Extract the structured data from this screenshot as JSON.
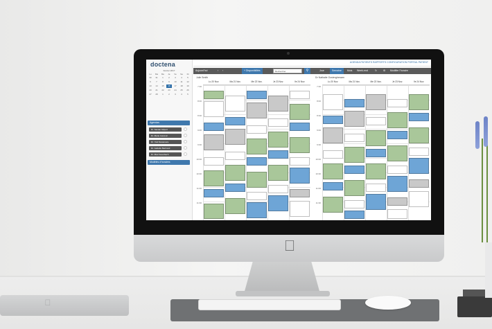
{
  "app": {
    "logo": "doctena",
    "top_nav": "AGENDA  PATIENTS  RAPPORTS  CONFIGURATION  PORTAIL PATIENT"
  },
  "mini_calendar": {
    "month": "Février 2017",
    "weekdays": [
      "Lu",
      "Ma",
      "Me",
      "Je",
      "Ve",
      "Sa",
      "Di"
    ],
    "days": [
      "30",
      "31",
      "1",
      "2",
      "3",
      "4",
      "5",
      "6",
      "7",
      "8",
      "9",
      "10",
      "11",
      "12",
      "13",
      "14",
      "15",
      "16",
      "17",
      "18",
      "19",
      "20",
      "21",
      "22",
      "23",
      "24",
      "25",
      "26",
      "27",
      "28",
      "1",
      "2",
      "3",
      "4",
      "5"
    ],
    "today": "16"
  },
  "sidebar": {
    "sections": [
      {
        "label": "Agendas"
      },
      {
        "label": "Modèles d'horaires"
      }
    ],
    "doctors": [
      "Dr. Sander Hilpert",
      "Dr. Marie Ivanovic",
      "Dr. Yuki Nanamura",
      "Dr. Isabelle Bertrand",
      "Dr. Max Feuerbach"
    ]
  },
  "toolbar": {
    "today": "Aujourd'hui",
    "prev": "‹",
    "next": "›",
    "availability": "+ Disponibilités",
    "search_value": "Rechercher",
    "views": [
      "Jour",
      "Semaine",
      "Mois",
      "Week-end"
    ],
    "modify": "Modifier l'horaire"
  },
  "calendar": {
    "left_doctor": "Julie Smith",
    "right_doctor": "Dr Nathalie Oosterghessen",
    "days": [
      "Lu 20 Nov.",
      "Ma 21 Nov.",
      "Me 22 Nov.",
      "Je 23 Nov.",
      "Ve 24 Nov."
    ],
    "times": [
      "7:30",
      "8:00",
      "8:30",
      "9:00",
      "9:30",
      "10:00",
      "10:30",
      "11:00",
      "11:30"
    ]
  },
  "colors": {
    "accent": "#3f78ad",
    "appt_green": "#a9c79a",
    "appt_blue": "#6ea5d6",
    "appt_grey": "#c9c9c9",
    "appt_white": "#ffffff"
  }
}
